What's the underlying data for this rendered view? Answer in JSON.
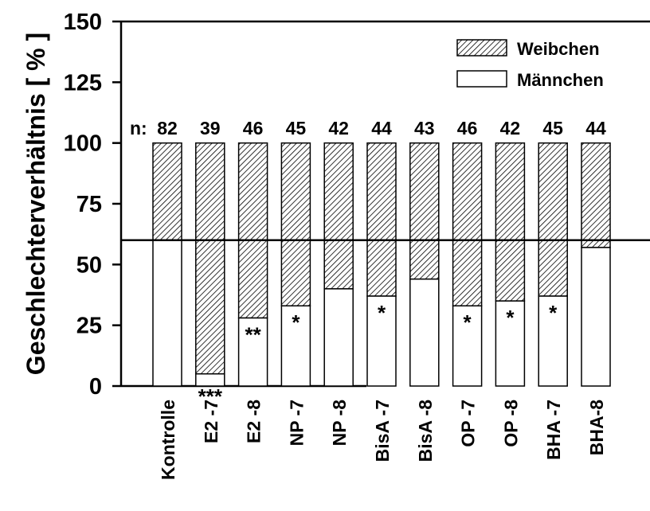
{
  "chart_data": {
    "type": "bar",
    "stacked": true,
    "ylabel": "Geschlechterverhältnis [ % ]",
    "ylim": [
      0,
      150
    ],
    "yticks": [
      "0",
      "25",
      "50",
      "75",
      "100",
      "125",
      "150"
    ],
    "categories": [
      "Kontrolle",
      "E2 -7",
      "E2 -8",
      "NP -7",
      "NP -8",
      "BisA -7",
      "BisA -8",
      "OP -7",
      "OP -8",
      "BHA -7",
      "BHA-8"
    ],
    "n_prefix": "n:",
    "n_values": [
      "82",
      "39",
      "46",
      "45",
      "42",
      "44",
      "43",
      "46",
      "42",
      "45",
      "44"
    ],
    "series": [
      {
        "name": "Männchen",
        "values": [
          60,
          5,
          28,
          33,
          40,
          37,
          44,
          33,
          35,
          37,
          57
        ],
        "fill": "#ffffff"
      },
      {
        "name": "Weibchen",
        "values": [
          40,
          95,
          72,
          67,
          60,
          63,
          56,
          67,
          65,
          63,
          43
        ],
        "fill": "hatch"
      }
    ],
    "significance": [
      "",
      "***",
      "**",
      "*",
      "",
      "*",
      "",
      "*",
      "*",
      "*",
      ""
    ],
    "reference_line": 60,
    "legend_position": "top-right",
    "grid": false
  }
}
